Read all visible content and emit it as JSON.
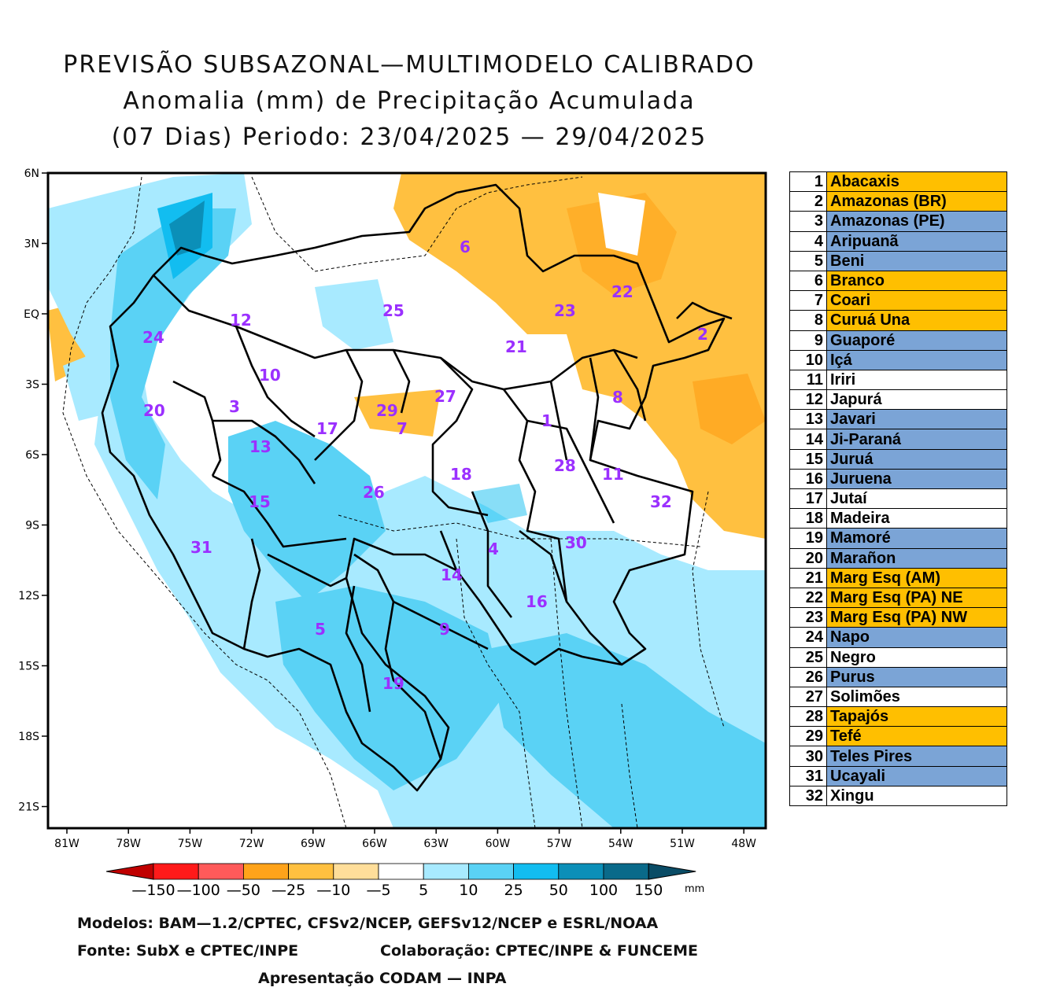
{
  "title": {
    "line1": "PREVISÃO SUBSAZONAL—MULTIMODELO CALIBRADO",
    "line2": "Anomalia (mm) de Precipitação Acumulada",
    "line3": "(07 Dias) Periodo: 23/04/2025 — 29/04/2025"
  },
  "axes": {
    "lat_labels": [
      "6N",
      "3N",
      "EQ",
      "3S",
      "6S",
      "9S",
      "12S",
      "15S",
      "18S",
      "21S"
    ],
    "lon_labels": [
      "81W",
      "78W",
      "75W",
      "72W",
      "69W",
      "66W",
      "63W",
      "60W",
      "57W",
      "54W",
      "51W",
      "48W"
    ]
  },
  "colorbar": {
    "labels": [
      "—150",
      "—100",
      "—50",
      "—25",
      "—10",
      "—5",
      "5",
      "10",
      "25",
      "50",
      "100",
      "150"
    ],
    "unit": "mm",
    "colors": [
      "#c00000",
      "#ff1a1a",
      "#ff5a5a",
      "#ffa31a",
      "#ffc040",
      "#ffde9a",
      "#ffffff",
      "#a8eaff",
      "#5ad2f5",
      "#12bdf0",
      "#0b8fb8",
      "#0a6a8a",
      "#0a4c66"
    ]
  },
  "basins": [
    {
      "num": "1",
      "name": "Abacaxis",
      "category": "neg"
    },
    {
      "num": "2",
      "name": "Amazonas (BR)",
      "category": "neg"
    },
    {
      "num": "3",
      "name": "Amazonas (PE)",
      "category": "pos"
    },
    {
      "num": "4",
      "name": "Aripuanã",
      "category": "pos"
    },
    {
      "num": "5",
      "name": "Beni",
      "category": "pos"
    },
    {
      "num": "6",
      "name": "Branco",
      "category": "neg"
    },
    {
      "num": "7",
      "name": "Coari",
      "category": "neg"
    },
    {
      "num": "8",
      "name": "Curuá Una",
      "category": "neg"
    },
    {
      "num": "9",
      "name": "Guaporé",
      "category": "pos"
    },
    {
      "num": "10",
      "name": "Içá",
      "category": "pos"
    },
    {
      "num": "11",
      "name": "Iriri",
      "category": "neutral"
    },
    {
      "num": "12",
      "name": "Japurá",
      "category": "neutral"
    },
    {
      "num": "13",
      "name": "Javari",
      "category": "pos"
    },
    {
      "num": "14",
      "name": "Ji-Paraná",
      "category": "pos"
    },
    {
      "num": "15",
      "name": "Juruá",
      "category": "pos"
    },
    {
      "num": "16",
      "name": "Juruena",
      "category": "pos"
    },
    {
      "num": "17",
      "name": "Jutaí",
      "category": "neutral"
    },
    {
      "num": "18",
      "name": "Madeira",
      "category": "neutral"
    },
    {
      "num": "19",
      "name": "Mamoré",
      "category": "pos"
    },
    {
      "num": "20",
      "name": "Marañon",
      "category": "pos"
    },
    {
      "num": "21",
      "name": "Marg Esq (AM)",
      "category": "neg"
    },
    {
      "num": "22",
      "name": "Marg Esq (PA) NE",
      "category": "neg"
    },
    {
      "num": "23",
      "name": "Marg Esq (PA) NW",
      "category": "neg"
    },
    {
      "num": "24",
      "name": "Napo",
      "category": "pos"
    },
    {
      "num": "25",
      "name": "Negro",
      "category": "neutral"
    },
    {
      "num": "26",
      "name": "Purus",
      "category": "pos"
    },
    {
      "num": "27",
      "name": "Solimões",
      "category": "neutral"
    },
    {
      "num": "28",
      "name": "Tapajós",
      "category": "neg"
    },
    {
      "num": "29",
      "name": "Tefé",
      "category": "neg"
    },
    {
      "num": "30",
      "name": "Teles Pires",
      "category": "pos"
    },
    {
      "num": "31",
      "name": "Ucayali",
      "category": "pos"
    },
    {
      "num": "32",
      "name": "Xingu",
      "category": "neutral"
    }
  ],
  "category_colors": {
    "neg": "#ffbf00",
    "pos": "#7ba4d6",
    "neutral": "#ffffff"
  },
  "footer": {
    "models": "Modelos: BAM—1.2/CPTEC, CFSv2/NCEP, GEFSv12/NCEP e ESRL/NOAA",
    "source": "Fonte: SubX e CPTEC/INPE",
    "collab": "Colaboração: CPTEC/INPE & FUNCEME",
    "presentation": "Apresentação CODAM — INPA"
  }
}
